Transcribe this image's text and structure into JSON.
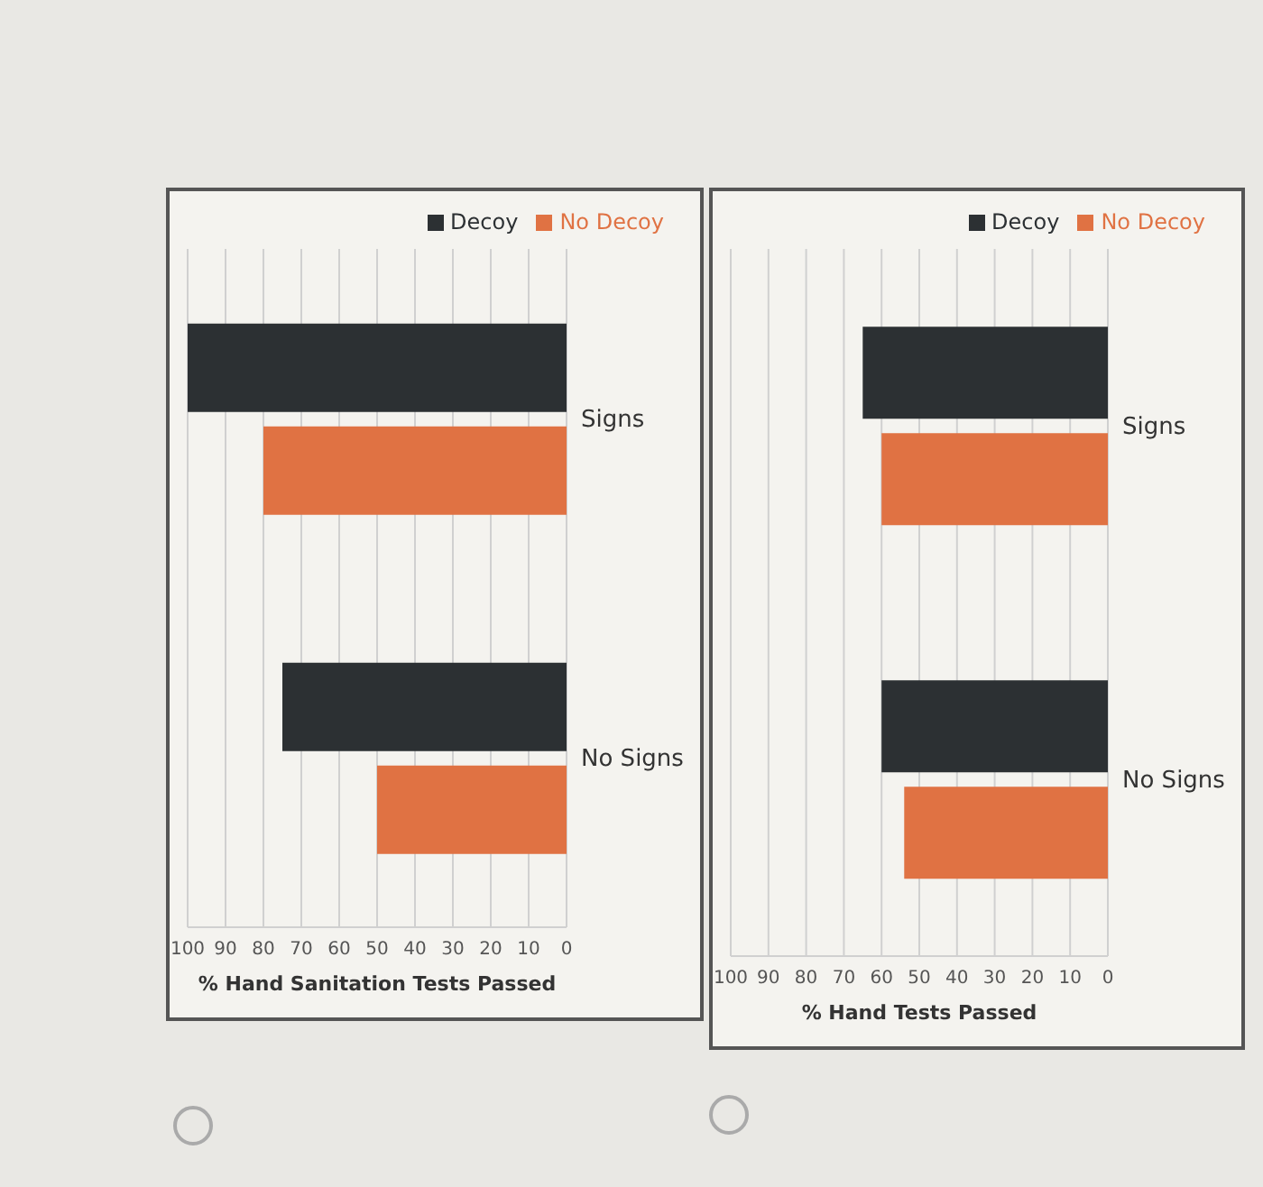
{
  "chart_data": [
    {
      "type": "bar",
      "orientation": "horizontal",
      "xlabel": "% Hand Sanitation Tests Passed",
      "categories": [
        "Signs",
        "No Signs"
      ],
      "series": [
        {
          "name": "Decoy",
          "color": "#2c3033",
          "values": [
            100,
            75
          ]
        },
        {
          "name": "No Decoy",
          "color": "#e07243",
          "values": [
            80,
            50
          ]
        }
      ],
      "xlim": [
        100,
        0
      ],
      "xticks": [
        100,
        90,
        80,
        70,
        60,
        50,
        40,
        30,
        20,
        10,
        0
      ],
      "grid": "x",
      "legend": "top right"
    },
    {
      "type": "bar",
      "orientation": "horizontal",
      "xlabel": "% Hand Tests Passed",
      "categories": [
        "Signs",
        "No Signs"
      ],
      "series": [
        {
          "name": "Decoy",
          "color": "#2c3033",
          "values": [
            65,
            60
          ]
        },
        {
          "name": "No Decoy",
          "color": "#e07243",
          "values": [
            60,
            54
          ]
        }
      ],
      "xlim": [
        100,
        0
      ],
      "xticks": [
        100,
        90,
        80,
        70,
        60,
        50,
        40,
        30,
        20,
        10,
        0
      ],
      "grid": "x",
      "legend": "top right"
    }
  ]
}
